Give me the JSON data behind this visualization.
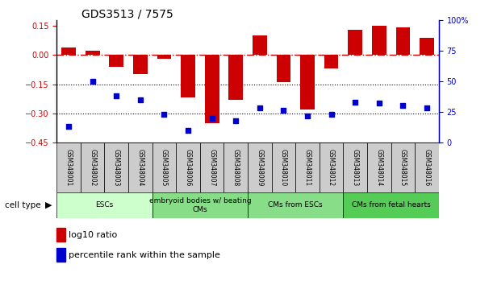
{
  "title": "GDS3513 / 7575",
  "samples": [
    "GSM348001",
    "GSM348002",
    "GSM348003",
    "GSM348004",
    "GSM348005",
    "GSM348006",
    "GSM348007",
    "GSM348008",
    "GSM348009",
    "GSM348010",
    "GSM348011",
    "GSM348012",
    "GSM348013",
    "GSM348014",
    "GSM348015",
    "GSM348016"
  ],
  "log10_ratio": [
    0.04,
    0.02,
    -0.06,
    -0.1,
    -0.02,
    -0.22,
    -0.35,
    -0.23,
    0.1,
    -0.14,
    -0.28,
    -0.07,
    0.13,
    0.15,
    0.14,
    0.09
  ],
  "percentile_rank": [
    13,
    50,
    38,
    35,
    23,
    10,
    20,
    18,
    28,
    26,
    22,
    23,
    33,
    32,
    30,
    28
  ],
  "cell_type_groups": [
    {
      "label": "ESCs",
      "start": 0,
      "end": 3,
      "color": "#ccffcc"
    },
    {
      "label": "embryoid bodies w/ beating\nCMs",
      "start": 4,
      "end": 7,
      "color": "#88dd88"
    },
    {
      "label": "CMs from ESCs",
      "start": 8,
      "end": 11,
      "color": "#88dd88"
    },
    {
      "label": "CMs from fetal hearts",
      "start": 12,
      "end": 15,
      "color": "#55cc55"
    }
  ],
  "bar_color": "#cc0000",
  "dot_color": "#0000cc",
  "left_ylim": [
    -0.45,
    0.18
  ],
  "right_ylim": [
    0,
    100
  ],
  "left_yticks": [
    -0.45,
    -0.3,
    -0.15,
    0.0,
    0.15
  ],
  "right_yticks": [
    0,
    25,
    50,
    75,
    100
  ],
  "right_yticklabels": [
    "0",
    "25",
    "50",
    "75",
    "100%"
  ],
  "hline_y": 0.0,
  "dotted_lines": [
    -0.15,
    -0.3
  ],
  "legend_bar_label": "log10 ratio",
  "legend_dot_label": "percentile rank within the sample",
  "sample_box_color": "#cccccc",
  "cell_type_label": "cell type"
}
